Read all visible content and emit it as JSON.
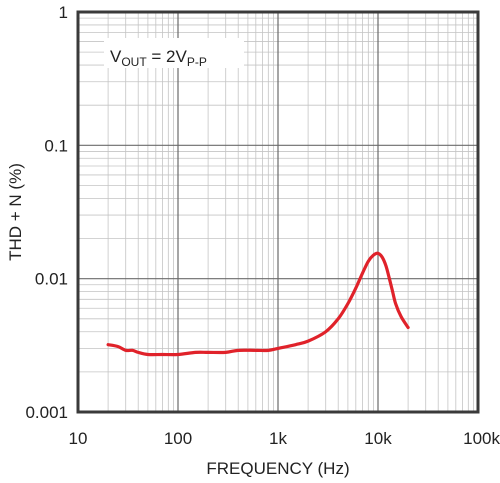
{
  "chart_data": {
    "type": "line",
    "title": "",
    "xlabel": "FREQUENCY (Hz)",
    "ylabel": "THD + N (%)",
    "xscale": "log",
    "yscale": "log",
    "xlim": [
      10,
      100000
    ],
    "ylim": [
      0.001,
      1
    ],
    "grid": true,
    "x_ticks": [
      {
        "value": 10,
        "label": "10"
      },
      {
        "value": 100,
        "label": "100"
      },
      {
        "value": 1000,
        "label": "1k"
      },
      {
        "value": 10000,
        "label": "10k"
      },
      {
        "value": 100000,
        "label": "100k"
      }
    ],
    "y_ticks": [
      {
        "value": 1,
        "label": "1"
      },
      {
        "value": 0.1,
        "label": "0.1"
      },
      {
        "value": 0.01,
        "label": "0.01"
      },
      {
        "value": 0.001,
        "label": "0.001"
      }
    ],
    "annotation": {
      "base": "V",
      "sub1": "OUT",
      "mid": " = 2V",
      "sub2": "P-P"
    },
    "series": [
      {
        "color": "#e0222a",
        "x": [
          20,
          25,
          30,
          35,
          40,
          50,
          70,
          100,
          150,
          200,
          300,
          400,
          600,
          800,
          1000,
          1500,
          2000,
          3000,
          4000,
          5000,
          6000,
          7000,
          8000,
          9000,
          10000,
          11000,
          12000,
          13000,
          14000,
          15000,
          17000,
          20000
        ],
        "y": [
          0.0032,
          0.0031,
          0.0029,
          0.0029,
          0.0028,
          0.0027,
          0.0027,
          0.0027,
          0.0028,
          0.0028,
          0.0028,
          0.0029,
          0.0029,
          0.0029,
          0.003,
          0.0032,
          0.0034,
          0.004,
          0.005,
          0.0065,
          0.0085,
          0.011,
          0.0135,
          0.015,
          0.0155,
          0.0145,
          0.0125,
          0.01,
          0.008,
          0.0065,
          0.0052,
          0.0043
        ]
      }
    ]
  }
}
